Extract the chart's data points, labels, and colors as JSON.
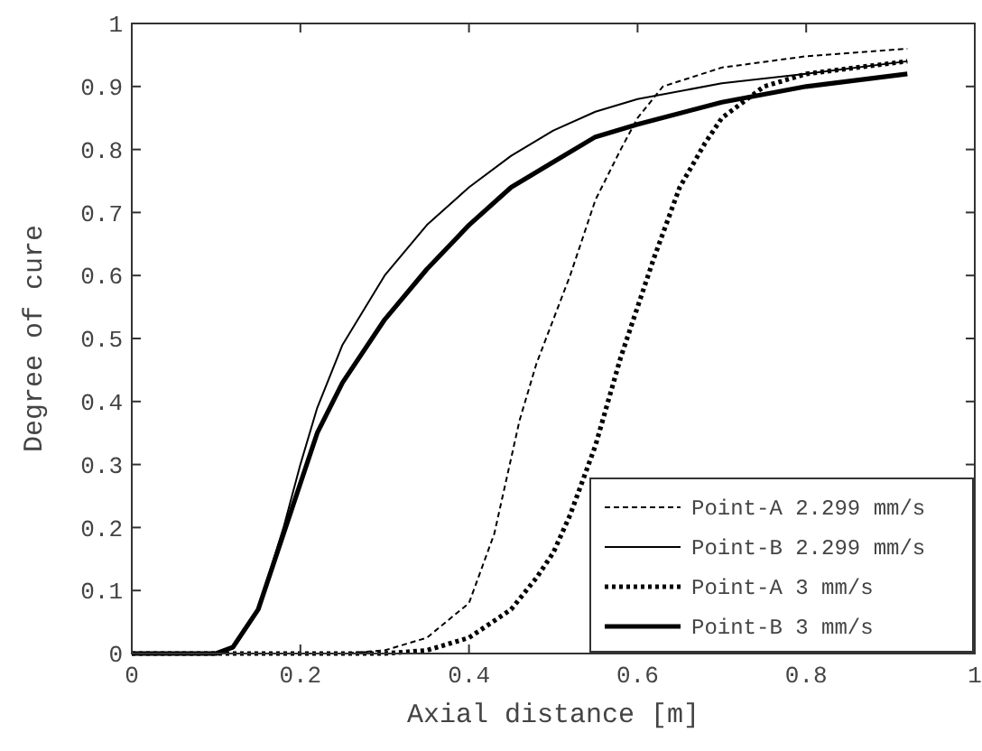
{
  "chart_data": {
    "type": "line",
    "xlabel": "Axial distance [m]",
    "ylabel": "Degree of cure",
    "xlim": [
      0,
      1
    ],
    "ylim": [
      0,
      1
    ],
    "xticks": [
      0,
      0.2,
      0.4,
      0.6,
      0.8,
      1
    ],
    "yticks": [
      0,
      0.1,
      0.2,
      0.3,
      0.4,
      0.5,
      0.6,
      0.7,
      0.8,
      0.9,
      1
    ],
    "grid": false,
    "legend": "bottom right",
    "marker": "none",
    "series": [
      {
        "name": "Point-A 2.299 mm/s",
        "color": "#000000",
        "line_style": "dashed",
        "x": [
          0,
          0.25,
          0.3,
          0.35,
          0.4,
          0.43,
          0.46,
          0.48,
          0.5,
          0.52,
          0.55,
          0.58,
          0.6,
          0.63,
          0.7,
          0.8,
          0.92
        ],
        "values": [
          0,
          0,
          0.005,
          0.025,
          0.08,
          0.19,
          0.37,
          0.46,
          0.53,
          0.6,
          0.72,
          0.8,
          0.85,
          0.9,
          0.93,
          0.948,
          0.96
        ]
      },
      {
        "name": "Point-B 2.299 mm/s",
        "color": "#000000",
        "line_style": "solid",
        "x": [
          0,
          0.1,
          0.12,
          0.15,
          0.18,
          0.2,
          0.22,
          0.25,
          0.3,
          0.35,
          0.4,
          0.45,
          0.5,
          0.55,
          0.6,
          0.7,
          0.8,
          0.92
        ],
        "values": [
          0,
          0,
          0.01,
          0.07,
          0.2,
          0.3,
          0.39,
          0.49,
          0.6,
          0.68,
          0.74,
          0.79,
          0.83,
          0.86,
          0.88,
          0.905,
          0.92,
          0.94
        ]
      },
      {
        "name": "Point-A 3 mm/s",
        "color": "#000000",
        "line_style": "dotted",
        "x": [
          0,
          0.3,
          0.35,
          0.4,
          0.45,
          0.48,
          0.5,
          0.52,
          0.55,
          0.58,
          0.6,
          0.62,
          0.65,
          0.68,
          0.7,
          0.75,
          0.8,
          0.92
        ],
        "values": [
          0,
          0,
          0.005,
          0.025,
          0.07,
          0.12,
          0.16,
          0.22,
          0.33,
          0.47,
          0.55,
          0.63,
          0.74,
          0.81,
          0.85,
          0.9,
          0.92,
          0.94
        ]
      },
      {
        "name": "Point-B 3 mm/s",
        "color": "#000000",
        "line_style": "solid",
        "x": [
          0,
          0.1,
          0.12,
          0.15,
          0.18,
          0.2,
          0.22,
          0.25,
          0.3,
          0.35,
          0.4,
          0.45,
          0.5,
          0.55,
          0.6,
          0.7,
          0.8,
          0.92
        ],
        "values": [
          0,
          0,
          0.01,
          0.07,
          0.19,
          0.27,
          0.35,
          0.43,
          0.53,
          0.61,
          0.68,
          0.74,
          0.78,
          0.82,
          0.84,
          0.875,
          0.9,
          0.92
        ]
      }
    ]
  }
}
